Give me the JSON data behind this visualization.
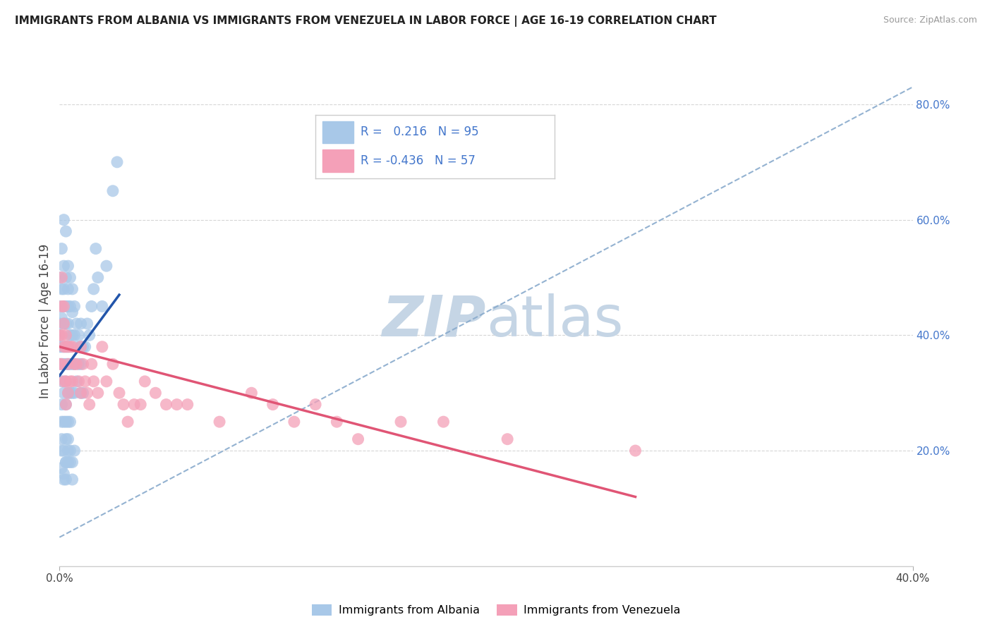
{
  "title": "IMMIGRANTS FROM ALBANIA VS IMMIGRANTS FROM VENEZUELA IN LABOR FORCE | AGE 16-19 CORRELATION CHART",
  "source": "Source: ZipAtlas.com",
  "ylabel": "In Labor Force | Age 16-19",
  "xlim": [
    0.0,
    0.4
  ],
  "ylim": [
    0.0,
    0.85
  ],
  "x_tick_positions": [
    0.0,
    0.4
  ],
  "x_tick_labels": [
    "0.0%",
    "40.0%"
  ],
  "y_ticks": [
    0.0,
    0.2,
    0.4,
    0.6,
    0.8
  ],
  "y_tick_labels_right": [
    "",
    "20.0%",
    "40.0%",
    "60.0%",
    "80.0%"
  ],
  "albania_R": 0.216,
  "albania_N": 95,
  "venezuela_R": -0.436,
  "venezuela_N": 57,
  "albania_color": "#a8c8e8",
  "venezuela_color": "#f4a0b8",
  "albania_line_color": "#2255aa",
  "venezuela_line_color": "#e05575",
  "trendline_dashed_color": "#88aacc",
  "background_color": "#ffffff",
  "grid_color": "#cccccc",
  "watermark_zip": "ZIP",
  "watermark_atlas": "atlas",
  "watermark_zip_color": "#c5d5e5",
  "watermark_atlas_color": "#c5d5e5",
  "legend_border_color": "#cccccc",
  "right_tick_color": "#4477cc",
  "albania_scatter_x": [
    0.0,
    0.0,
    0.0,
    0.0,
    0.0,
    0.0,
    0.001,
    0.001,
    0.001,
    0.001,
    0.001,
    0.001,
    0.001,
    0.001,
    0.001,
    0.001,
    0.002,
    0.002,
    0.002,
    0.002,
    0.002,
    0.002,
    0.002,
    0.002,
    0.002,
    0.002,
    0.003,
    0.003,
    0.003,
    0.003,
    0.003,
    0.003,
    0.003,
    0.003,
    0.003,
    0.003,
    0.004,
    0.004,
    0.004,
    0.004,
    0.004,
    0.004,
    0.004,
    0.004,
    0.004,
    0.005,
    0.005,
    0.005,
    0.005,
    0.005,
    0.005,
    0.005,
    0.006,
    0.006,
    0.006,
    0.006,
    0.006,
    0.007,
    0.007,
    0.007,
    0.007,
    0.008,
    0.008,
    0.008,
    0.009,
    0.009,
    0.01,
    0.01,
    0.01,
    0.01,
    0.011,
    0.011,
    0.012,
    0.013,
    0.014,
    0.015,
    0.016,
    0.017,
    0.018,
    0.02,
    0.022,
    0.025,
    0.027,
    0.005,
    0.003,
    0.003,
    0.002,
    0.004,
    0.006,
    0.007,
    0.003,
    0.004,
    0.006,
    0.001,
    0.002
  ],
  "albania_scatter_y": [
    0.4,
    0.42,
    0.45,
    0.35,
    0.5,
    0.38,
    0.55,
    0.48,
    0.43,
    0.38,
    0.35,
    0.32,
    0.28,
    0.25,
    0.22,
    0.2,
    0.6,
    0.52,
    0.48,
    0.45,
    0.42,
    0.38,
    0.35,
    0.3,
    0.25,
    0.2,
    0.58,
    0.5,
    0.45,
    0.42,
    0.38,
    0.35,
    0.32,
    0.28,
    0.22,
    0.18,
    0.52,
    0.48,
    0.45,
    0.42,
    0.38,
    0.35,
    0.3,
    0.25,
    0.2,
    0.5,
    0.45,
    0.4,
    0.35,
    0.3,
    0.25,
    0.2,
    0.48,
    0.44,
    0.4,
    0.35,
    0.3,
    0.45,
    0.4,
    0.35,
    0.3,
    0.42,
    0.38,
    0.32,
    0.4,
    0.35,
    0.42,
    0.38,
    0.35,
    0.3,
    0.38,
    0.3,
    0.38,
    0.42,
    0.4,
    0.45,
    0.48,
    0.55,
    0.5,
    0.45,
    0.52,
    0.65,
    0.7,
    0.18,
    0.15,
    0.18,
    0.15,
    0.18,
    0.15,
    0.2,
    0.25,
    0.22,
    0.18,
    0.17,
    0.16
  ],
  "venezuela_scatter_x": [
    0.0,
    0.0,
    0.001,
    0.001,
    0.001,
    0.001,
    0.002,
    0.002,
    0.002,
    0.002,
    0.003,
    0.003,
    0.003,
    0.003,
    0.004,
    0.004,
    0.004,
    0.005,
    0.005,
    0.006,
    0.006,
    0.007,
    0.008,
    0.009,
    0.01,
    0.01,
    0.011,
    0.012,
    0.013,
    0.014,
    0.015,
    0.016,
    0.018,
    0.02,
    0.022,
    0.025,
    0.028,
    0.03,
    0.032,
    0.035,
    0.038,
    0.04,
    0.045,
    0.05,
    0.055,
    0.06,
    0.075,
    0.09,
    0.1,
    0.11,
    0.12,
    0.13,
    0.14,
    0.16,
    0.18,
    0.21,
    0.27
  ],
  "venezuela_scatter_y": [
    0.4,
    0.35,
    0.5,
    0.45,
    0.4,
    0.35,
    0.45,
    0.42,
    0.38,
    0.32,
    0.4,
    0.38,
    0.32,
    0.28,
    0.38,
    0.35,
    0.3,
    0.38,
    0.32,
    0.38,
    0.32,
    0.35,
    0.35,
    0.32,
    0.38,
    0.3,
    0.35,
    0.32,
    0.3,
    0.28,
    0.35,
    0.32,
    0.3,
    0.38,
    0.32,
    0.35,
    0.3,
    0.28,
    0.25,
    0.28,
    0.28,
    0.32,
    0.3,
    0.28,
    0.28,
    0.28,
    0.25,
    0.3,
    0.28,
    0.25,
    0.28,
    0.25,
    0.22,
    0.25,
    0.25,
    0.22,
    0.2
  ],
  "albania_trendline": [
    0.0,
    0.028,
    0.33,
    0.47
  ],
  "venezuela_trendline": [
    0.0,
    0.38,
    0.27,
    0.12
  ],
  "dashed_trendline": [
    0.0,
    0.05,
    0.4,
    0.83
  ]
}
